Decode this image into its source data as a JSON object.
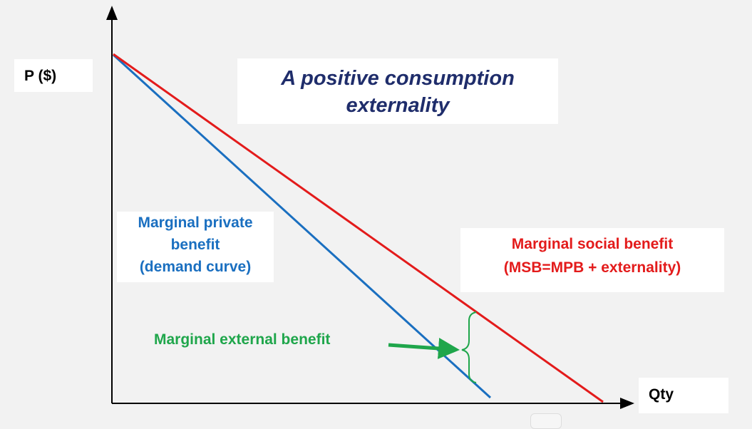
{
  "title": "A positive consumption externality",
  "y_axis_label": "P ($)",
  "x_axis_label": "Qty",
  "mpb_label": {
    "line1": "Marginal private",
    "line2": "benefit",
    "line3": "(demand curve)"
  },
  "msb_label": {
    "line1": "Marginal social benefit",
    "line2": "(MSB=MPB + externality)"
  },
  "meb_label": "Marginal external benefit",
  "colors": {
    "mpb": "#1a6fc0",
    "msb": "#e31b1b",
    "meb": "#1fa64b",
    "title": "#1f2d6b",
    "background": "#f2f2f2"
  }
}
